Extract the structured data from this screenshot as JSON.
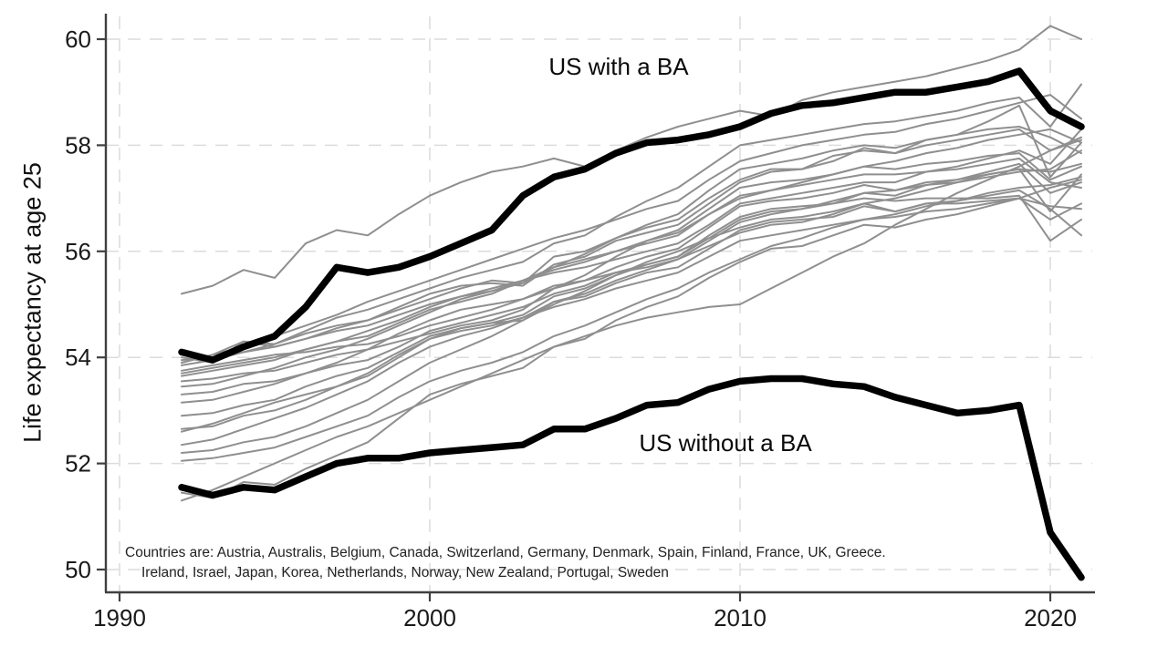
{
  "chart_data": {
    "type": "line",
    "title": "",
    "xlabel": "",
    "ylabel": "Life expectancy at age 25",
    "x_ticks": [
      1990,
      2000,
      2010,
      2020
    ],
    "x_tick_labels": [
      "1990",
      "2000",
      "2010",
      "2020"
    ],
    "y_ticks": [
      50,
      52,
      54,
      56,
      58,
      60
    ],
    "y_tick_labels": [
      "50",
      "52",
      "54",
      "56",
      "58",
      "60"
    ],
    "xlim": [
      1989.5,
      2021.5
    ],
    "ylim": [
      49.6,
      60.4
    ],
    "grid": "dashed horizontal and vertical gridlines at each tick",
    "legend_position": "none (direct line annotations)",
    "years": [
      1992,
      1993,
      1994,
      1995,
      1996,
      1997,
      1998,
      1999,
      2000,
      2001,
      2002,
      2003,
      2004,
      2005,
      2006,
      2007,
      2008,
      2009,
      2010,
      2011,
      2012,
      2013,
      2014,
      2015,
      2016,
      2017,
      2018,
      2019,
      2020,
      2021
    ],
    "series": [
      {
        "name": "US with a BA",
        "type": "emphasis",
        "values": [
          54.1,
          53.95,
          54.2,
          54.4,
          54.95,
          55.7,
          55.6,
          55.7,
          55.9,
          56.15,
          56.4,
          57.05,
          57.4,
          57.55,
          57.85,
          58.05,
          58.1,
          58.2,
          58.35,
          58.6,
          58.75,
          58.8,
          58.9,
          59.0,
          59.0,
          59.1,
          59.2,
          59.4,
          58.65,
          58.35
        ]
      },
      {
        "name": "US without a BA",
        "type": "emphasis",
        "values": [
          51.55,
          51.4,
          51.55,
          51.5,
          51.75,
          52.0,
          52.1,
          52.1,
          52.2,
          52.25,
          52.3,
          52.35,
          52.65,
          52.65,
          52.85,
          53.1,
          53.15,
          53.4,
          53.55,
          53.6,
          53.6,
          53.5,
          53.45,
          53.25,
          53.1,
          52.95,
          53.0,
          53.1,
          50.7,
          49.85
        ]
      },
      {
        "name": "Japan",
        "type": "country",
        "values": [
          55.2,
          55.35,
          55.65,
          55.5,
          56.15,
          56.4,
          56.3,
          56.7,
          57.05,
          57.3,
          57.5,
          57.6,
          57.75,
          57.6,
          57.9,
          58.15,
          58.35,
          58.5,
          58.65,
          58.55,
          58.85,
          59.0,
          59.1,
          59.2,
          59.3,
          59.45,
          59.6,
          59.8,
          60.25,
          60.0
        ]
      },
      {
        "name": "Switzerland",
        "type": "country",
        "values": [
          54.0,
          53.9,
          54.3,
          54.25,
          54.5,
          54.75,
          54.9,
          55.1,
          55.3,
          55.5,
          55.65,
          55.8,
          56.15,
          56.3,
          56.65,
          56.95,
          57.2,
          57.6,
          58.0,
          58.1,
          58.2,
          58.3,
          58.4,
          58.45,
          58.55,
          58.65,
          58.8,
          58.9,
          58.35,
          59.15
        ]
      },
      {
        "name": "Spain",
        "type": "country",
        "values": [
          53.95,
          54.0,
          54.1,
          54.25,
          54.45,
          54.6,
          54.7,
          54.95,
          55.2,
          55.35,
          55.4,
          55.35,
          55.75,
          55.9,
          56.2,
          56.35,
          56.5,
          56.9,
          57.3,
          57.5,
          57.55,
          57.8,
          57.9,
          57.85,
          58.1,
          58.2,
          58.45,
          58.75,
          57.4,
          58.05
        ]
      },
      {
        "name": "Sweden",
        "type": "country",
        "values": [
          53.9,
          54.05,
          54.3,
          54.2,
          54.35,
          54.5,
          54.6,
          54.8,
          55.0,
          55.15,
          55.25,
          55.45,
          55.6,
          55.7,
          55.85,
          56.0,
          56.15,
          56.5,
          56.9,
          57.0,
          57.1,
          57.2,
          57.3,
          57.3,
          57.5,
          57.6,
          57.75,
          57.9,
          57.65,
          58.3
        ]
      },
      {
        "name": "France",
        "type": "country",
        "values": [
          53.85,
          53.95,
          54.1,
          54.2,
          54.35,
          54.55,
          54.7,
          54.9,
          55.1,
          55.3,
          55.45,
          55.4,
          55.9,
          56.0,
          56.25,
          56.45,
          56.6,
          57.0,
          57.35,
          57.55,
          57.55,
          57.7,
          57.95,
          57.85,
          58.0,
          58.1,
          58.2,
          58.3,
          57.9,
          58.15
        ]
      },
      {
        "name": "Australis",
        "type": "country",
        "values": [
          53.9,
          54.05,
          54.2,
          54.4,
          54.6,
          54.8,
          55.05,
          55.25,
          55.45,
          55.65,
          55.85,
          56.05,
          56.25,
          56.4,
          56.6,
          56.8,
          56.95,
          57.35,
          57.7,
          57.85,
          58.0,
          58.1,
          58.2,
          58.25,
          58.4,
          58.5,
          58.65,
          58.8,
          58.95,
          58.5
        ]
      },
      {
        "name": "Greece",
        "type": "country",
        "values": [
          53.75,
          53.85,
          53.95,
          54.05,
          54.1,
          54.2,
          54.25,
          54.4,
          54.6,
          54.75,
          54.9,
          55.1,
          55.3,
          55.45,
          55.6,
          55.7,
          55.85,
          56.1,
          56.35,
          56.5,
          56.55,
          56.7,
          56.9,
          56.75,
          56.9,
          56.95,
          57.05,
          57.15,
          56.8,
          56.3
        ]
      },
      {
        "name": "Canada",
        "type": "country",
        "values": [
          53.7,
          53.8,
          53.9,
          54.0,
          54.15,
          54.3,
          54.5,
          54.7,
          54.95,
          55.15,
          55.3,
          55.45,
          55.65,
          55.8,
          56.0,
          56.15,
          56.3,
          56.7,
          57.05,
          57.15,
          57.25,
          57.35,
          57.45,
          57.45,
          57.5,
          57.55,
          57.65,
          57.75,
          57.3,
          57.2
        ]
      },
      {
        "name": "Netherlands",
        "type": "country",
        "values": [
          53.55,
          53.6,
          53.7,
          53.75,
          53.9,
          54.05,
          54.15,
          54.3,
          54.45,
          54.6,
          54.7,
          54.9,
          55.3,
          55.55,
          55.9,
          56.2,
          56.4,
          56.8,
          57.2,
          57.3,
          57.35,
          57.45,
          57.6,
          57.55,
          57.65,
          57.7,
          57.8,
          57.85,
          57.35,
          57.6
        ]
      },
      {
        "name": "Norway",
        "type": "country",
        "values": [
          53.65,
          53.75,
          53.85,
          53.95,
          54.15,
          54.3,
          54.4,
          54.65,
          54.9,
          55.05,
          55.2,
          55.45,
          55.7,
          55.85,
          56.0,
          56.2,
          56.35,
          56.7,
          57.0,
          57.15,
          57.3,
          57.45,
          57.6,
          57.7,
          57.85,
          57.95,
          58.1,
          58.2,
          58.3,
          58.05
        ]
      },
      {
        "name": "Israel",
        "type": "country",
        "values": [
          53.45,
          53.5,
          53.65,
          53.8,
          54.0,
          54.15,
          54.35,
          54.6,
          54.85,
          55.1,
          55.25,
          55.4,
          55.7,
          55.95,
          56.25,
          56.5,
          56.7,
          57.15,
          57.55,
          57.65,
          57.75,
          57.9,
          58.0,
          57.95,
          58.1,
          58.2,
          58.3,
          58.35,
          58.15,
          57.85
        ]
      },
      {
        "name": "UK",
        "type": "country",
        "values": [
          53.3,
          53.35,
          53.5,
          53.55,
          53.7,
          53.85,
          53.95,
          54.2,
          54.5,
          54.65,
          54.8,
          54.95,
          55.2,
          55.35,
          55.6,
          55.75,
          55.9,
          56.3,
          56.65,
          56.8,
          56.85,
          56.9,
          57.0,
          56.95,
          57.0,
          57.0,
          57.0,
          57.05,
          56.2,
          56.6
        ]
      },
      {
        "name": "Austria",
        "type": "country",
        "values": [
          53.15,
          53.2,
          53.35,
          53.5,
          53.7,
          53.9,
          54.15,
          54.45,
          54.7,
          54.9,
          55.0,
          55.1,
          55.35,
          55.45,
          55.7,
          55.9,
          56.05,
          56.45,
          56.85,
          56.95,
          57.0,
          57.1,
          57.25,
          57.15,
          57.3,
          57.35,
          57.5,
          57.65,
          57.1,
          57.3
        ]
      },
      {
        "name": "Belgium",
        "type": "country",
        "values": [
          52.9,
          52.95,
          53.1,
          53.2,
          53.45,
          53.65,
          53.8,
          54.1,
          54.4,
          54.55,
          54.65,
          54.8,
          55.15,
          55.3,
          55.55,
          55.75,
          55.9,
          56.25,
          56.6,
          56.75,
          56.8,
          56.9,
          57.1,
          57.05,
          57.25,
          57.3,
          57.45,
          57.55,
          56.75,
          57.45
        ]
      },
      {
        "name": "Germany",
        "type": "country",
        "values": [
          52.65,
          52.7,
          52.9,
          53.0,
          53.2,
          53.45,
          53.7,
          54.05,
          54.35,
          54.55,
          54.65,
          54.7,
          55.05,
          55.15,
          55.4,
          55.6,
          55.7,
          56.05,
          56.4,
          56.55,
          56.6,
          56.65,
          56.85,
          56.75,
          56.9,
          56.9,
          56.95,
          57.0,
          56.85,
          56.8
        ]
      },
      {
        "name": "New Zealand",
        "type": "country",
        "values": [
          52.6,
          52.75,
          52.95,
          53.15,
          53.3,
          53.45,
          53.65,
          54.0,
          54.35,
          54.5,
          54.6,
          54.75,
          54.95,
          55.1,
          55.3,
          55.45,
          55.6,
          55.9,
          56.2,
          56.3,
          56.4,
          56.5,
          56.6,
          56.65,
          56.75,
          56.8,
          56.9,
          57.0,
          57.2,
          57.35
        ]
      },
      {
        "name": "Finland",
        "type": "country",
        "values": [
          52.35,
          52.45,
          52.65,
          52.85,
          53.05,
          53.3,
          53.55,
          53.9,
          54.2,
          54.4,
          54.55,
          54.75,
          55.05,
          55.2,
          55.45,
          55.65,
          55.85,
          56.2,
          56.55,
          56.7,
          56.8,
          56.95,
          57.1,
          57.15,
          57.25,
          57.35,
          57.45,
          57.55,
          57.5,
          57.65
        ]
      },
      {
        "name": "Ireland",
        "type": "country",
        "values": [
          52.2,
          52.25,
          52.4,
          52.5,
          52.7,
          52.95,
          53.2,
          53.55,
          53.9,
          54.15,
          54.4,
          54.7,
          55.0,
          55.25,
          55.55,
          55.8,
          56.0,
          56.25,
          56.45,
          56.6,
          56.65,
          56.75,
          56.9,
          57.0,
          57.15,
          57.3,
          57.4,
          57.5,
          57.55,
          57.9
        ]
      },
      {
        "name": "Denmark",
        "type": "country",
        "values": [
          52.05,
          52.1,
          52.2,
          52.3,
          52.5,
          52.7,
          52.9,
          53.25,
          53.55,
          53.75,
          53.9,
          54.1,
          54.4,
          54.6,
          54.85,
          55.1,
          55.3,
          55.6,
          55.85,
          56.1,
          56.25,
          56.45,
          56.6,
          56.7,
          56.85,
          56.95,
          57.1,
          57.2,
          57.25,
          57.4
        ]
      },
      {
        "name": "Portugal",
        "type": "country",
        "values": [
          51.45,
          51.35,
          51.65,
          51.6,
          51.9,
          52.15,
          52.4,
          52.85,
          53.3,
          53.5,
          53.65,
          53.8,
          54.2,
          54.35,
          54.7,
          54.95,
          55.15,
          55.5,
          55.8,
          56.05,
          56.1,
          56.3,
          56.5,
          56.45,
          56.6,
          56.7,
          56.85,
          57.0,
          56.6,
          56.9
        ]
      },
      {
        "name": "Korea",
        "type": "country",
        "values": [
          51.3,
          51.5,
          51.75,
          52.0,
          52.25,
          52.5,
          52.7,
          52.95,
          53.2,
          53.45,
          53.7,
          53.95,
          54.2,
          54.4,
          54.6,
          54.75,
          54.85,
          54.95,
          55.0,
          55.3,
          55.6,
          55.9,
          56.15,
          56.5,
          56.8,
          57.1,
          57.35,
          57.6,
          57.9,
          58.1
        ]
      }
    ],
    "annotations": [
      {
        "text": "US with a BA",
        "year": 2006.1,
        "value": 59.5
      },
      {
        "text": "US without a BA",
        "year": 2009.5,
        "value": 52.4
      }
    ],
    "note_line1": "Countries are: Austria, Australis, Belgium, Canada, Switzerland, Germany, Denmark, Spain, Finland, France, UK, Greece.",
    "note_line2": "Ireland, Israel, Japan, Korea, Netherlands, Norway, New Zealand, Portugal, Sweden",
    "colors": {
      "emphasis_line": "#000000",
      "country_line": "#8f8f8f",
      "gridline": "#dcdcdc",
      "axis": "#404040",
      "text": "#1a1a1a"
    }
  }
}
